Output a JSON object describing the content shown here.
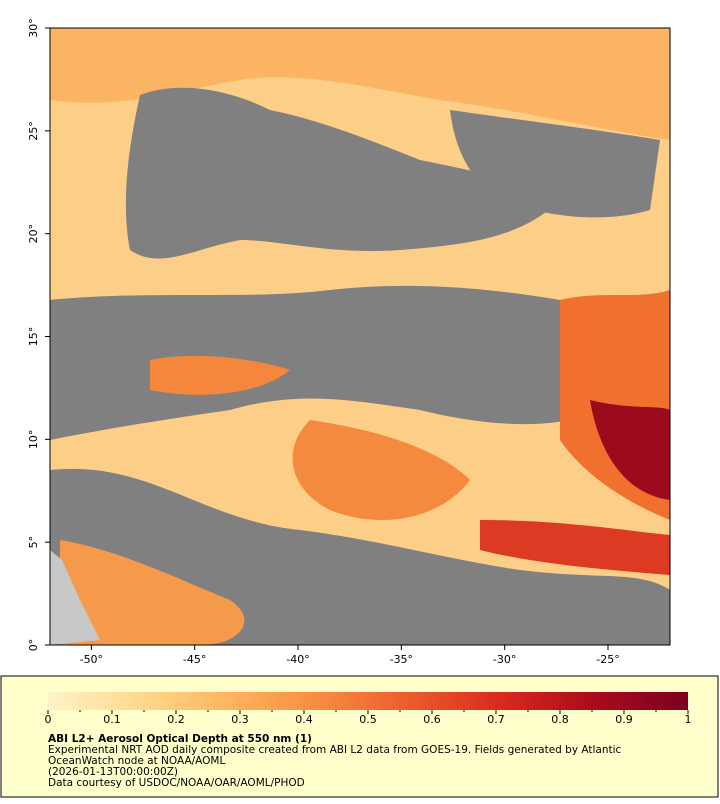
{
  "map": {
    "xlim": [
      -52,
      -22
    ],
    "ylim": [
      0,
      30
    ],
    "xticks": [
      {
        "value": -50,
        "label": "-50°"
      },
      {
        "value": -45,
        "label": "-45°"
      },
      {
        "value": -40,
        "label": "-40°"
      },
      {
        "value": -35,
        "label": "-35°"
      },
      {
        "value": -30,
        "label": "-30°"
      },
      {
        "value": -25,
        "label": "-25°"
      }
    ],
    "yticks": [
      {
        "value": 0,
        "label": "0°"
      },
      {
        "value": 5,
        "label": "5°"
      },
      {
        "value": 10,
        "label": "10°"
      },
      {
        "value": 15,
        "label": "15°"
      },
      {
        "value": 20,
        "label": "20°"
      },
      {
        "value": 25,
        "label": "25°"
      },
      {
        "value": 30,
        "label": "30°"
      }
    ]
  },
  "colorbar": {
    "range": [
      0,
      1
    ],
    "ticks": [
      0,
      0.1,
      0.2,
      0.3,
      0.4,
      0.5,
      0.6,
      0.7,
      0.8,
      0.9,
      1
    ],
    "colors": [
      "#fff3c8",
      "#fed98e",
      "#fdb45e",
      "#f88a3f",
      "#ea5a2c",
      "#d7281e",
      "#a80b1c",
      "#7a0020"
    ]
  },
  "caption": {
    "title": "ABI L2+ Aerosol Optical Depth at 550 nm (1)",
    "lines": [
      "Experimental NRT AOD daily composite created from ABI L2 data from GOES-19. Fields generated by Atlantic",
      "OceanWatch node at NOAA/AOML",
      "(2026-01-13T00:00:00Z)",
      "Data courtesy of USDOC/NOAA/OAR/AOML/PHOD"
    ]
  }
}
